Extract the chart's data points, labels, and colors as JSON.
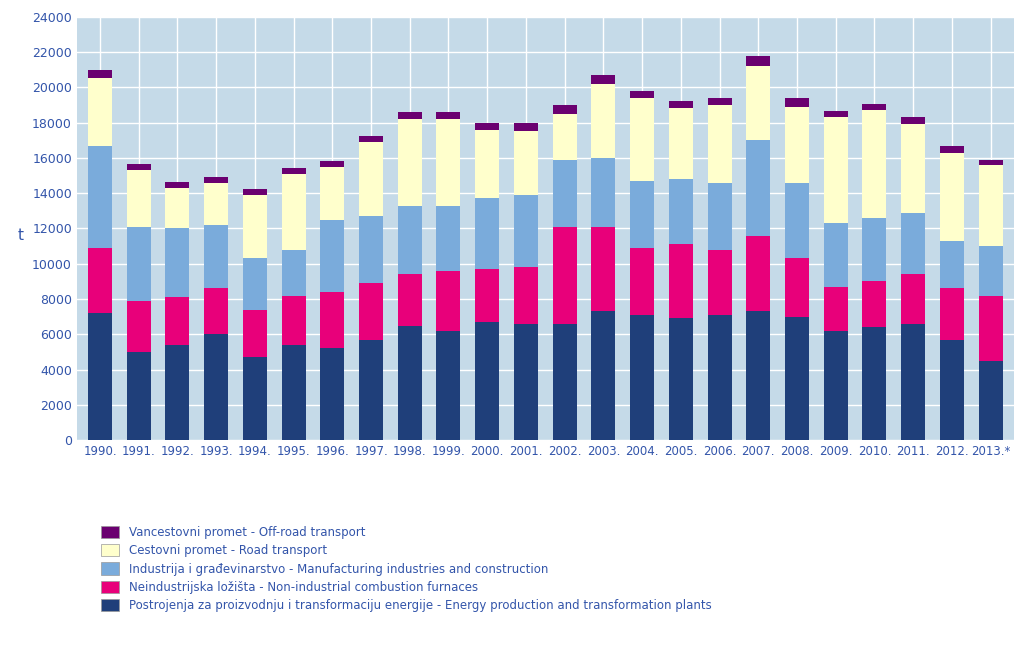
{
  "years": [
    "1990.",
    "1991.",
    "1992.",
    "1993.",
    "1994.",
    "1995.",
    "1996.",
    "1997.",
    "1998.",
    "1999.",
    "2000.",
    "2001.",
    "2002.",
    "2003.",
    "2004.",
    "2005.",
    "2006.",
    "2007.",
    "2008.",
    "2009.",
    "2010.",
    "2011.",
    "2012.",
    "2013.*"
  ],
  "energy_production": [
    7200,
    5000,
    5400,
    6000,
    4700,
    5400,
    5200,
    5700,
    6500,
    6200,
    6700,
    6600,
    6600,
    7300,
    7100,
    6900,
    7100,
    7300,
    7000,
    6200,
    6400,
    6600,
    5700,
    4500
  ],
  "non_industrial": [
    3700,
    2900,
    2700,
    2600,
    2700,
    2800,
    3200,
    3200,
    2900,
    3400,
    3000,
    3200,
    5500,
    4800,
    3800,
    4200,
    3700,
    4300,
    3300,
    2500,
    2600,
    2800,
    2900,
    3700
  ],
  "manufacturing": [
    5800,
    4200,
    3900,
    3600,
    2900,
    2600,
    4100,
    3800,
    3900,
    3700,
    4000,
    4100,
    3800,
    3900,
    3800,
    3700,
    3800,
    5400,
    4300,
    3600,
    3600,
    3500,
    2700,
    2800
  ],
  "road_transport": [
    3800,
    3200,
    2300,
    2400,
    3600,
    4300,
    3000,
    4200,
    4900,
    4900,
    3900,
    3600,
    2600,
    4200,
    4700,
    4000,
    4400,
    4200,
    4300,
    6000,
    6100,
    5000,
    5000,
    4600
  ],
  "off_road": [
    500,
    350,
    350,
    300,
    350,
    350,
    300,
    350,
    400,
    400,
    400,
    500,
    500,
    500,
    400,
    400,
    400,
    550,
    500,
    350,
    350,
    400,
    350,
    300
  ],
  "colors": {
    "energy_production": "#1f3f7a",
    "non_industrial": "#e8007a",
    "manufacturing": "#7aabdb",
    "road_transport": "#ffffcc",
    "off_road": "#6b0070"
  },
  "background_color": "#c5dae8",
  "grid_color": "#ffffff",
  "ylabel": "t",
  "ylim": [
    0,
    24000
  ],
  "yticks": [
    0,
    2000,
    4000,
    6000,
    8000,
    10000,
    12000,
    14000,
    16000,
    18000,
    20000,
    22000,
    24000
  ],
  "legend_labels": [
    "Vancestovni promet - Off-road transport",
    "Cestovni promet - Road transport",
    "Industrija i građevinarstvo - Manufacturing industries and construction",
    "Neindustrijska ložišta - Non-industrial combustion furnaces",
    "Postrojenja za proizvodnju i transformaciju energije - Energy production and transformation plants"
  ],
  "tick_color": "#3355aa",
  "figsize": [
    10.24,
    6.67
  ],
  "dpi": 100
}
